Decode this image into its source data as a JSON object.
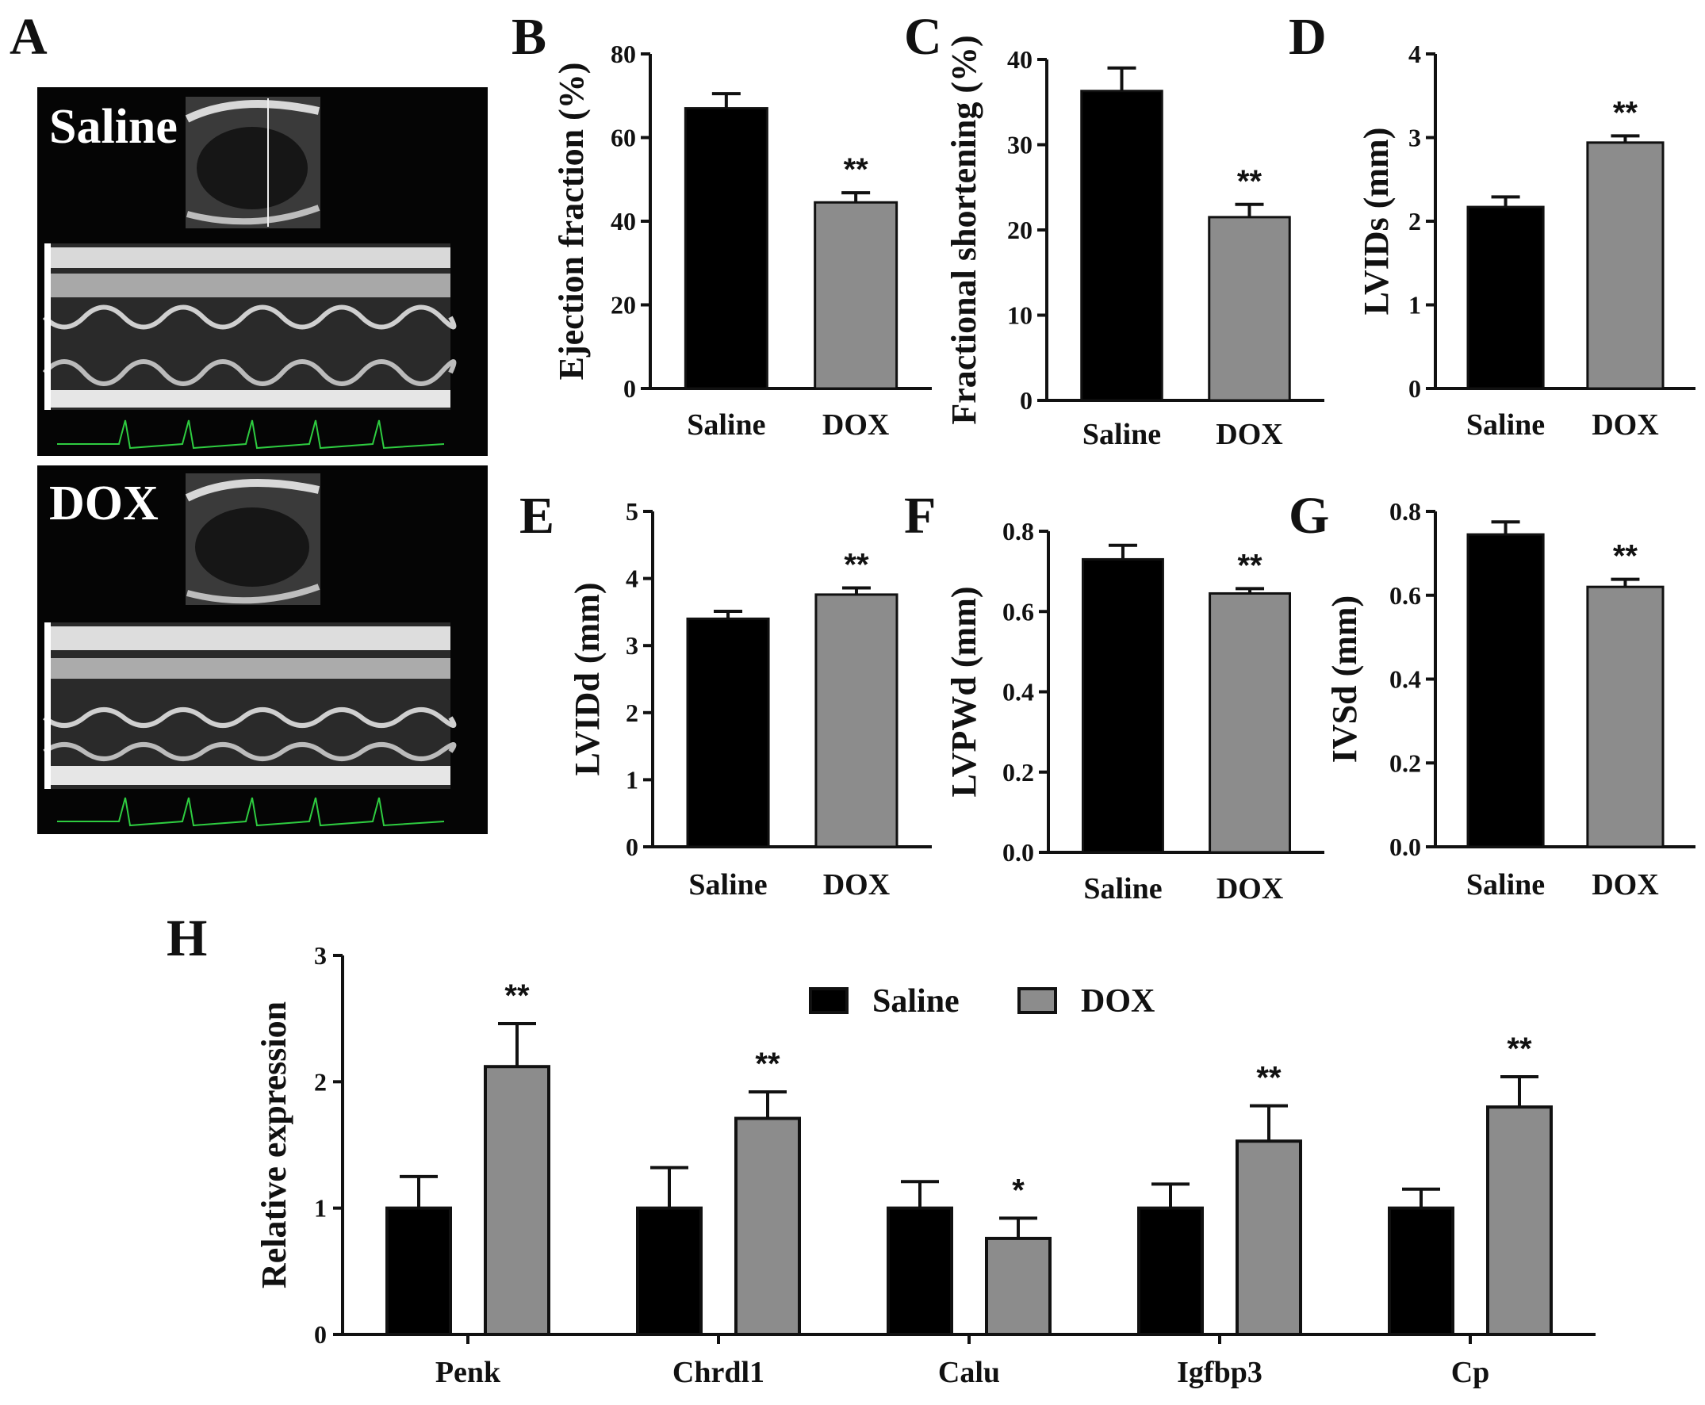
{
  "panel_letters": [
    "A",
    "B",
    "C",
    "D",
    "E",
    "F",
    "G",
    "H"
  ],
  "echo": {
    "saline_label": "Saline",
    "dox_label": "DOX",
    "colors": {
      "background": "#050505",
      "ecg": "#2ecc40"
    }
  },
  "chart_data": [
    {
      "id": "B",
      "type": "bar",
      "categories": [
        "Saline",
        "DOX"
      ],
      "values": [
        67,
        44.5
      ],
      "errors": [
        3.5,
        2.3
      ],
      "significance": [
        "",
        "**"
      ],
      "title": "",
      "xlabel": "",
      "ylabel": "Ejection fraction (%)",
      "ylim": [
        0,
        80
      ],
      "yticks": [
        "0",
        "20",
        "40",
        "60",
        "80"
      ],
      "grid": false
    },
    {
      "id": "C",
      "type": "bar",
      "categories": [
        "Saline",
        "DOX"
      ],
      "values": [
        36.3,
        21.5
      ],
      "errors": [
        2.7,
        1.5
      ],
      "significance": [
        "",
        "**"
      ],
      "title": "",
      "xlabel": "",
      "ylabel": "Fractional shortening (%)",
      "ylim": [
        0,
        40
      ],
      "yticks": [
        "0",
        "10",
        "20",
        "30",
        "40"
      ],
      "grid": false
    },
    {
      "id": "D",
      "type": "bar",
      "categories": [
        "Saline",
        "DOX"
      ],
      "values": [
        2.17,
        2.94
      ],
      "errors": [
        0.12,
        0.08
      ],
      "significance": [
        "",
        "**"
      ],
      "title": "",
      "xlabel": "",
      "ylabel": "LVIDs (mm)",
      "ylim": [
        0,
        4
      ],
      "yticks": [
        "0",
        "1",
        "2",
        "3",
        "4"
      ],
      "grid": false
    },
    {
      "id": "E",
      "type": "bar",
      "categories": [
        "Saline",
        "DOX"
      ],
      "values": [
        3.4,
        3.76
      ],
      "errors": [
        0.11,
        0.1
      ],
      "significance": [
        "",
        "**"
      ],
      "title": "",
      "xlabel": "",
      "ylabel": "LVIDd (mm)",
      "ylim": [
        0,
        5
      ],
      "yticks": [
        "0",
        "1",
        "2",
        "3",
        "4",
        "5"
      ],
      "grid": false
    },
    {
      "id": "F",
      "type": "bar",
      "categories": [
        "Saline",
        "DOX"
      ],
      "values": [
        0.73,
        0.645
      ],
      "errors": [
        0.035,
        0.012
      ],
      "significance": [
        "",
        "**"
      ],
      "title": "",
      "xlabel": "",
      "ylabel": "LVPWd (mm)",
      "ylim": [
        0,
        0.8
      ],
      "yticks": [
        "0.0",
        "0.2",
        "0.4",
        "0.6",
        "0.8"
      ],
      "grid": false
    },
    {
      "id": "G",
      "type": "bar",
      "categories": [
        "Saline",
        "DOX"
      ],
      "values": [
        0.745,
        0.62
      ],
      "errors": [
        0.03,
        0.018
      ],
      "significance": [
        "",
        "**"
      ],
      "title": "",
      "xlabel": "",
      "ylabel": "IVSd (mm)",
      "ylim": [
        0,
        0.8
      ],
      "yticks": [
        "0.0",
        "0.2",
        "0.4",
        "0.6",
        "0.8"
      ],
      "grid": false
    },
    {
      "id": "H",
      "type": "bar",
      "categories": [
        "Penk",
        "Chrdl1",
        "Calu",
        "Igfbp3",
        "Cp"
      ],
      "series": [
        {
          "name": "Saline",
          "values": [
            1.0,
            1.0,
            1.0,
            1.0,
            1.0
          ],
          "errors": [
            0.25,
            0.32,
            0.21,
            0.19,
            0.15
          ],
          "color": "#000000"
        },
        {
          "name": "DOX",
          "values": [
            2.12,
            1.71,
            0.76,
            1.53,
            1.8
          ],
          "errors": [
            0.34,
            0.21,
            0.16,
            0.28,
            0.24
          ],
          "color": "#8c8c8c"
        }
      ],
      "significance": [
        "**",
        "**",
        "*",
        "**",
        "**"
      ],
      "title": "",
      "xlabel": "",
      "ylabel": "Relative expression",
      "ylim": [
        0,
        3
      ],
      "yticks": [
        "0",
        "1",
        "2",
        "3"
      ],
      "legend_position": "top-center",
      "grid": false
    }
  ],
  "colors": {
    "saline": "#000000",
    "dox": "#8c8c8c",
    "axis": "#111111"
  }
}
